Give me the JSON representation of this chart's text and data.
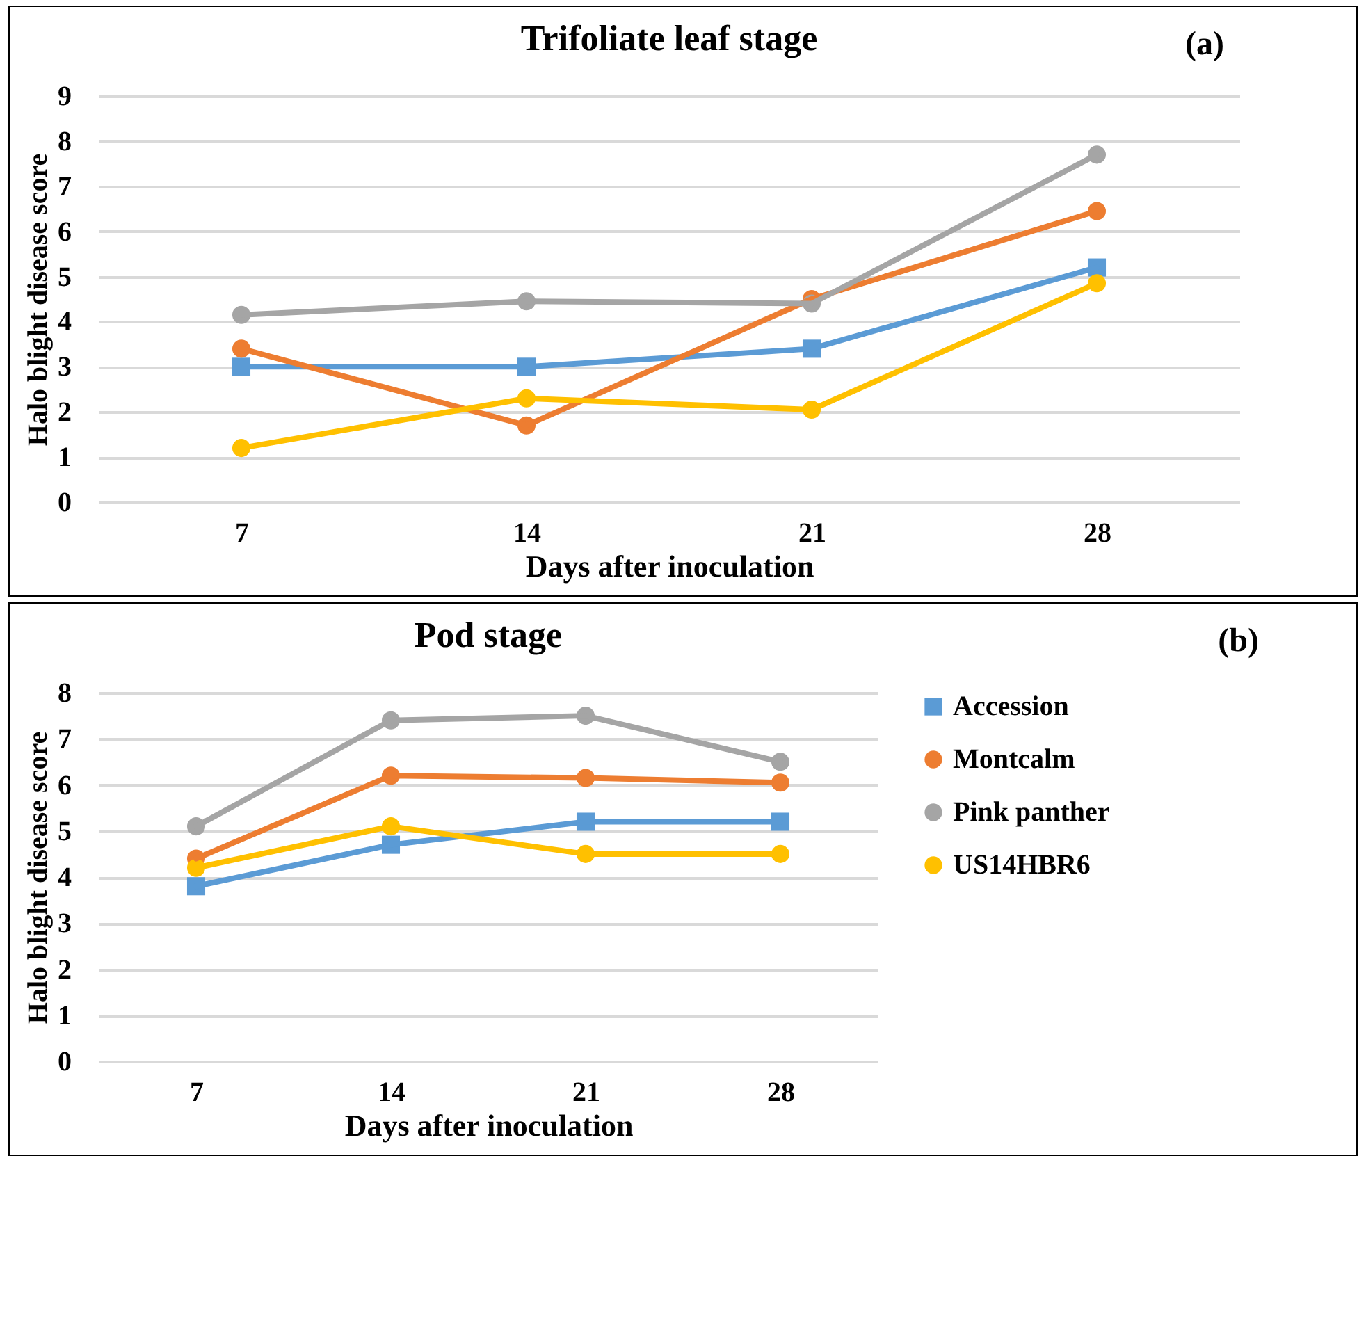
{
  "chart_data": [
    {
      "type": "line",
      "title": "Trifoliate leaf stage",
      "xlabel": "Days after inoculation",
      "ylabel": "Halo blight disease score",
      "categories": [
        "7",
        "14",
        "21",
        "28"
      ],
      "ylim": [
        0,
        9
      ],
      "yticks": [
        0,
        1,
        2,
        3,
        4,
        5,
        6,
        7,
        8,
        9
      ],
      "grid": "y",
      "annotations": [
        "(a)"
      ],
      "series": [
        {
          "color": "#5b9bd5",
          "marker": "square",
          "values": [
            3.0,
            3.0,
            3.4,
            5.2
          ]
        },
        {
          "color": "#ed7d31",
          "marker": "circle",
          "values": [
            3.4,
            1.7,
            4.5,
            6.45
          ]
        },
        {
          "color": "#a5a5a5",
          "marker": "circle",
          "values": [
            4.15,
            4.45,
            4.4,
            7.7
          ]
        },
        {
          "color": "#ffc000",
          "marker": "circle",
          "values": [
            1.2,
            2.3,
            2.05,
            4.85
          ]
        }
      ]
    },
    {
      "type": "line",
      "title": "Pod stage",
      "xlabel": "Days after inoculation",
      "ylabel": "Halo blight disease score",
      "categories": [
        "7",
        "14",
        "21",
        "28"
      ],
      "ylim": [
        0,
        8
      ],
      "yticks": [
        0,
        1,
        2,
        3,
        4,
        5,
        6,
        7,
        8
      ],
      "grid": "y",
      "legend": "right",
      "annotations": [
        "(b)"
      ],
      "series": [
        {
          "name": "Accession",
          "color": "#5b9bd5",
          "marker": "square",
          "values": [
            3.8,
            4.7,
            5.2,
            5.2
          ]
        },
        {
          "name": "Montcalm",
          "color": "#ed7d31",
          "marker": "circle",
          "values": [
            4.4,
            6.2,
            6.15,
            6.05
          ]
        },
        {
          "name": "Pink panther",
          "color": "#a5a5a5",
          "marker": "circle",
          "values": [
            5.1,
            7.4,
            7.5,
            6.5
          ]
        },
        {
          "name": "US14HBR6",
          "color": "#ffc000",
          "marker": "circle",
          "values": [
            4.2,
            5.1,
            4.5,
            4.5
          ]
        }
      ]
    }
  ]
}
